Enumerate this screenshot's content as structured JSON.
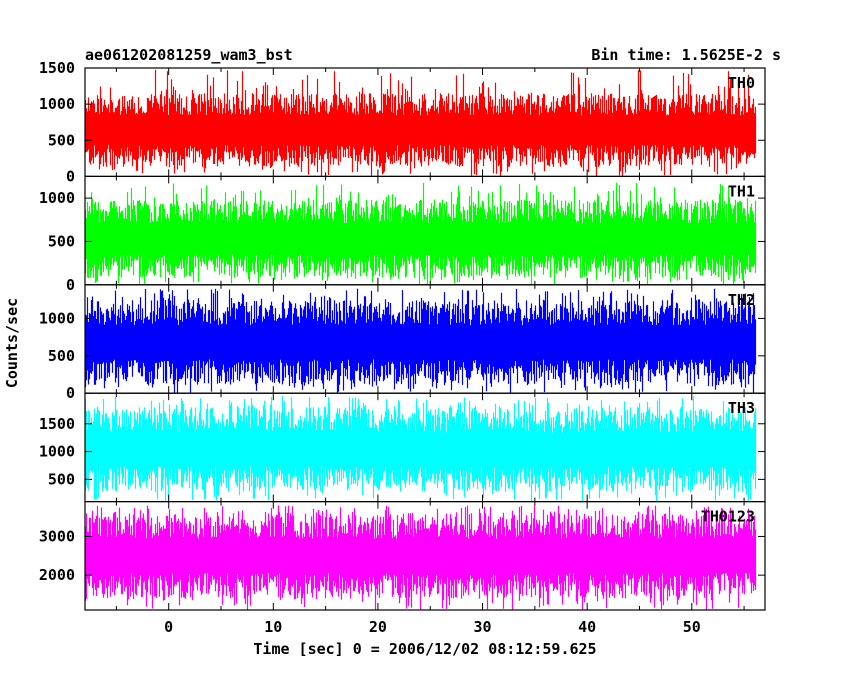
{
  "chart_data": {
    "type": "line",
    "title": "ae061202081259_wam3_bst",
    "subtitle": "Bin time: 1.5625E-2 s",
    "xlabel": "Time [sec] 0 = 2006/12/02 08:12:59.625",
    "ylabel": "Counts/sec",
    "xlim": [
      -8,
      57
    ],
    "x_ticks": [
      0,
      10,
      20,
      30,
      40,
      50
    ],
    "x_tick_labels": [
      "0",
      "10",
      "20",
      "30",
      "40",
      "50"
    ],
    "data_range_x": [
      -8,
      56
    ],
    "grid": false,
    "panels": [
      {
        "name": "TH0",
        "color": "#ff0000",
        "ylim": [
          0,
          1500
        ],
        "y_ticks": [
          0,
          500,
          1000,
          1500
        ],
        "y_tick_labels": [
          "0",
          "500",
          "1000",
          "1500"
        ],
        "mean": 600,
        "low": 130,
        "high": 1150,
        "peak": 1480
      },
      {
        "name": "TH1",
        "color": "#00ff00",
        "ylim": [
          0,
          1250
        ],
        "y_ticks": [
          0,
          500,
          1000
        ],
        "y_tick_labels": [
          "0",
          "500",
          "1000"
        ],
        "mean": 520,
        "low": 80,
        "high": 980,
        "peak": 1180
      },
      {
        "name": "TH2",
        "color": "#0000ff",
        "ylim": [
          0,
          1450
        ],
        "y_ticks": [
          0,
          500,
          1000
        ],
        "y_tick_labels": [
          "0",
          "500",
          "1000"
        ],
        "mean": 650,
        "low": 110,
        "high": 1250,
        "peak": 1400
      },
      {
        "name": "TH3",
        "color": "#00ffff",
        "ylim": [
          100,
          2050
        ],
        "y_ticks": [
          500,
          1000,
          1500
        ],
        "y_tick_labels": [
          "500",
          "1000",
          "1500"
        ],
        "mean": 1000,
        "low": 280,
        "high": 1800,
        "peak": 2000
      },
      {
        "name": "TH0123",
        "color": "#ff00ff",
        "ylim": [
          1100,
          3900
        ],
        "y_ticks": [
          2000,
          3000
        ],
        "y_tick_labels": [
          "2000",
          "3000"
        ],
        "mean": 2550,
        "low": 1400,
        "high": 3600,
        "peak": 3800
      }
    ]
  }
}
